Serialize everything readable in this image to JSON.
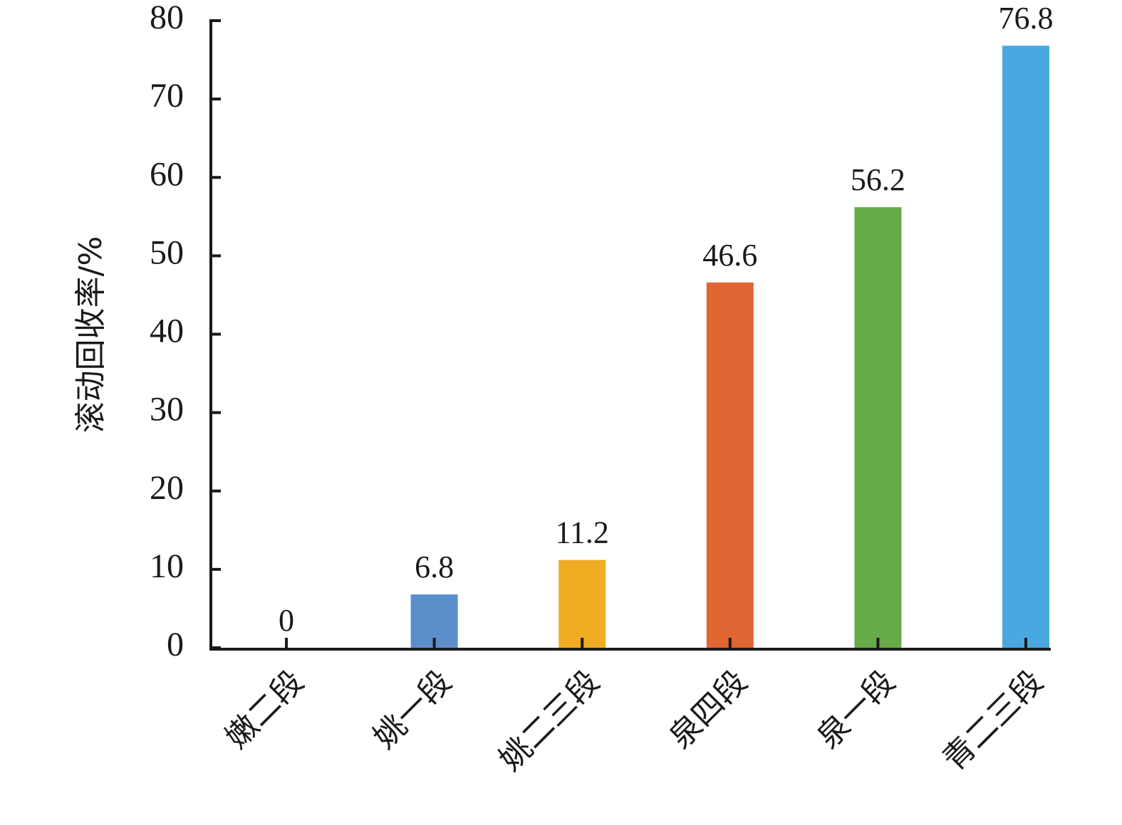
{
  "chart_data": {
    "type": "bar",
    "title": "",
    "xlabel": "",
    "ylabel": "滚动回收率/%",
    "categories": [
      "嫩二段",
      "姚一段",
      "姚二三段",
      "泉四段",
      "泉一段",
      "青二三段"
    ],
    "values": [
      0,
      6.8,
      11.2,
      46.6,
      56.2,
      76.8
    ],
    "data_labels": [
      "0",
      "6.8",
      "11.2",
      "46.6",
      "56.2",
      "76.8"
    ],
    "colors": [
      "#ffffff",
      "#5b8fcc",
      "#f0ac22",
      "#e06634",
      "#66ab47",
      "#4aa8e0"
    ],
    "ylim": [
      0,
      80
    ],
    "yticks": [
      0,
      10,
      20,
      30,
      40,
      50,
      60,
      70,
      80
    ],
    "grid": false,
    "legend": "none"
  }
}
